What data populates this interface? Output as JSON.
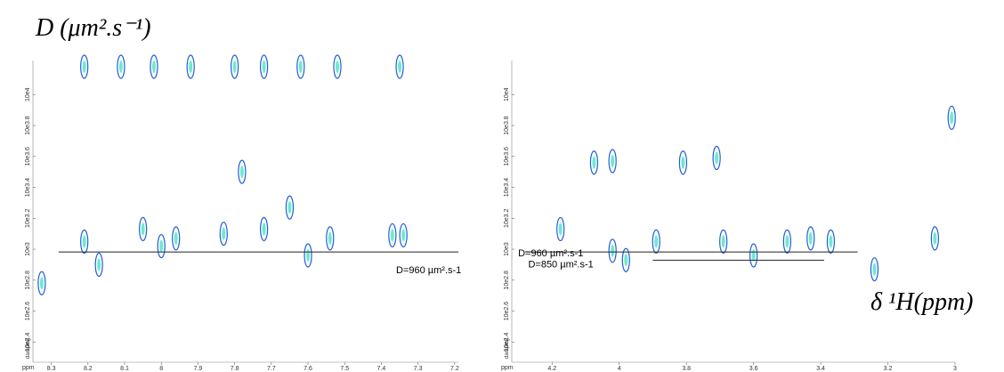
{
  "header": {
    "y_title": "D (μm².s⁻¹)",
    "x_title": "δ ¹H(ppm)"
  },
  "chart_data": [
    {
      "type": "contour",
      "x_label": "ppm",
      "y_label": "damping",
      "log_scale": true,
      "color": "#1f5fd6",
      "core_color": "#2ee0c0",
      "xlim": [
        8.35,
        7.19
      ],
      "ylim": [
        186,
        16600
      ],
      "xticks": [
        8.3,
        8.2,
        8.1,
        8,
        7.9,
        7.8,
        7.7,
        7.6,
        7.5,
        7.4,
        7.3,
        7.2
      ],
      "yticks": [
        {
          "value": 251.2,
          "label": "10e2.4"
        },
        {
          "value": 398.1,
          "label": "10e2.6"
        },
        {
          "value": 631,
          "label": "10e2.8"
        },
        {
          "value": 1000,
          "label": "10e3"
        },
        {
          "value": 1585,
          "label": "10e3.2"
        },
        {
          "value": 2512,
          "label": "10e3.4"
        },
        {
          "value": 3981,
          "label": "10e3.6"
        },
        {
          "value": 6310,
          "label": "10e3.8"
        },
        {
          "value": 10000,
          "label": "10e4"
        }
      ],
      "peaks": {
        "x": [
          8.326,
          8.21,
          8.17,
          8.05,
          8.0,
          7.96,
          7.83,
          7.78,
          7.72,
          7.65,
          7.6,
          7.54,
          7.37,
          7.34,
          8.21,
          8.11,
          8.02,
          7.92,
          7.8,
          7.72,
          7.62,
          7.52,
          7.35
        ],
        "y": [
          603,
          1120,
          794,
          1350,
          1047,
          1175,
          1259,
          3162,
          1350,
          1862,
          912,
          1175,
          1230,
          1230,
          15136,
          15136,
          15136,
          15136,
          15136,
          15136,
          15136,
          15136,
          15136
        ]
      },
      "lines": [
        {
          "label": "D=960 µm².s-1",
          "value": 960,
          "x": [
            8.28,
            7.19
          ]
        }
      ]
    },
    {
      "type": "contour",
      "x_label": "ppm",
      "y_label": "damping",
      "log_scale": true,
      "color": "#1f5fd6",
      "core_color": "#2ee0c0",
      "xlim": [
        4.32,
        3.0
      ],
      "ylim": [
        186,
        16600
      ],
      "xticks": [
        4.2,
        4,
        3.8,
        3.6,
        3.4,
        3.2,
        3
      ],
      "yticks": [
        {
          "value": 251.2,
          "label": "10e2.4"
        },
        {
          "value": 398.1,
          "label": "10e2.6"
        },
        {
          "value": 631,
          "label": "10e2.8"
        },
        {
          "value": 1000,
          "label": "10e3"
        },
        {
          "value": 1585,
          "label": "10e3.2"
        },
        {
          "value": 2512,
          "label": "10e3.4"
        },
        {
          "value": 3981,
          "label": "10e3.6"
        },
        {
          "value": 6310,
          "label": "10e3.8"
        },
        {
          "value": 10000,
          "label": "10e4"
        }
      ],
      "peaks": {
        "x": [
          4.175,
          4.075,
          4.02,
          4.02,
          3.98,
          3.89,
          3.81,
          3.71,
          3.69,
          3.6,
          3.5,
          3.43,
          3.37,
          3.24,
          3.06,
          3.01
        ],
        "y": [
          1349,
          3631,
          3715,
          977,
          851,
          1122,
          3631,
          3890,
          1122,
          912,
          1122,
          1175,
          1122,
          741,
          1175,
          7079
        ]
      },
      "lines": [
        {
          "label": "D=960 µm².s-1",
          "value": 960,
          "x": [
            4.28,
            3.29
          ]
        },
        {
          "label": "D=850 µm².s-1",
          "value": 850,
          "x": [
            3.9,
            3.39
          ]
        }
      ]
    }
  ]
}
